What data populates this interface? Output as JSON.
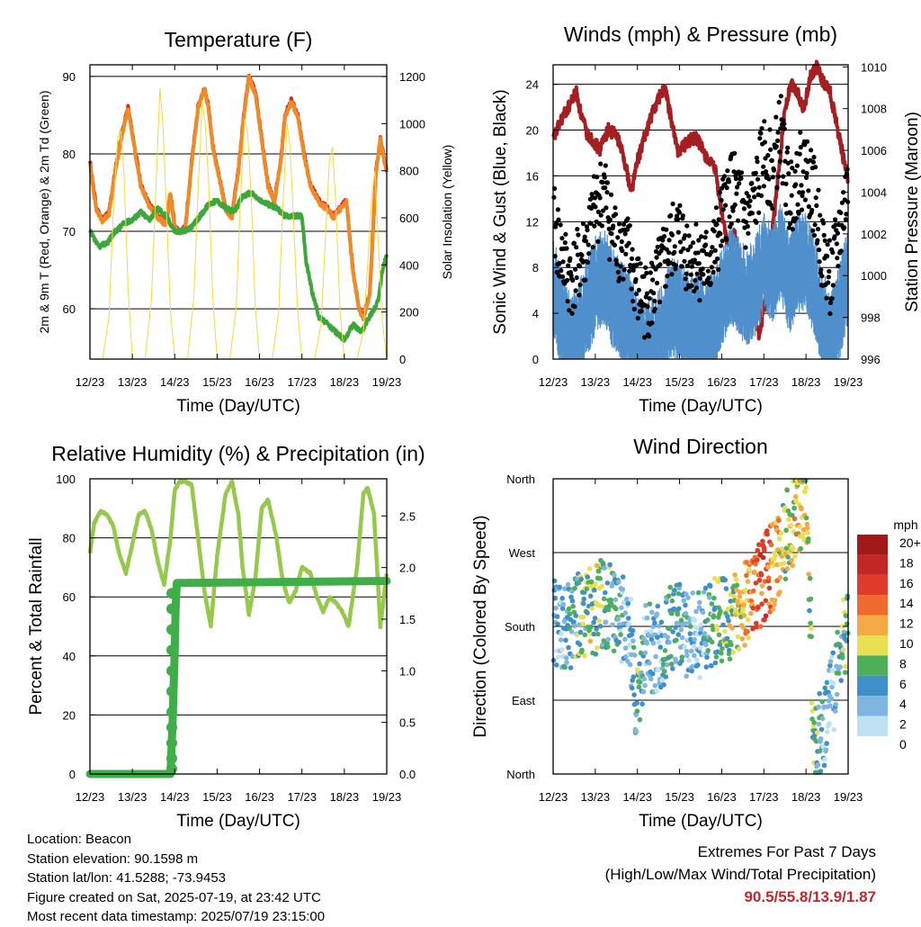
{
  "time_axis": {
    "ticks": [
      "12/23",
      "13/23",
      "14/23",
      "15/23",
      "16/23",
      "17/23",
      "18/23",
      "19/23"
    ]
  },
  "chart_data": [
    {
      "id": "temperature",
      "type": "line",
      "title": "Temperature (F)",
      "xlabel": "Time (Day/UTC)",
      "ylabel": "2m & 9m T (Red, Orange) & 2m Td (Green)",
      "y2label": "Solar Insolation (Yellow)",
      "x_range": [
        "12/23",
        "19/23"
      ],
      "ylim": [
        53.5,
        91.5
      ],
      "y_ticks": [
        60,
        70,
        80,
        90
      ],
      "y2lim": [
        0,
        1250
      ],
      "y2_ticks": [
        0,
        200,
        400,
        600,
        800,
        1000,
        1200
      ],
      "grid": true,
      "series": [
        {
          "axis": "left",
          "color": "#d42a22",
          "x": [
            12.0,
            12.15,
            12.3,
            12.45,
            12.6,
            12.75,
            12.9,
            13.05,
            13.2,
            13.4,
            13.6,
            13.8,
            13.9,
            14.0,
            14.1,
            14.25,
            14.4,
            14.55,
            14.7,
            14.8,
            14.9,
            15.05,
            15.2,
            15.35,
            15.5,
            15.65,
            15.75,
            15.9,
            16.05,
            16.2,
            16.35,
            16.5,
            16.6,
            16.75,
            16.9,
            17.05,
            17.2,
            17.4,
            17.6,
            17.75,
            17.9,
            18.05,
            18.2,
            18.35,
            18.45,
            18.6,
            18.75,
            18.85,
            18.95,
            19.0
          ],
          "y": [
            79,
            73,
            71.5,
            72.5,
            78,
            82.5,
            86,
            81,
            76,
            73.5,
            72,
            71,
            75,
            70.5,
            70,
            70.5,
            79,
            86,
            88.5,
            86,
            81,
            77,
            73,
            72,
            78,
            86,
            90,
            88,
            82,
            76,
            74,
            79,
            85,
            87,
            85,
            80,
            76,
            74,
            73,
            72,
            73,
            74,
            65,
            60,
            59,
            62,
            78,
            82,
            79,
            78
          ]
        },
        {
          "axis": "left",
          "color": "#f08a24",
          "x": [
            12.0,
            12.15,
            12.3,
            12.45,
            12.6,
            12.75,
            12.9,
            13.05,
            13.2,
            13.4,
            13.6,
            13.8,
            13.9,
            14.0,
            14.1,
            14.25,
            14.4,
            14.55,
            14.7,
            14.8,
            14.9,
            15.05,
            15.2,
            15.35,
            15.5,
            15.65,
            15.75,
            15.9,
            16.05,
            16.2,
            16.35,
            16.5,
            16.6,
            16.75,
            16.9,
            17.05,
            17.2,
            17.4,
            17.6,
            17.75,
            17.9,
            18.05,
            18.2,
            18.35,
            18.45,
            18.6,
            18.75,
            18.85,
            18.95,
            19.0
          ],
          "y": [
            78.8,
            72.8,
            71.3,
            72.3,
            77.8,
            82.3,
            85.8,
            80.8,
            75.8,
            73.3,
            71.8,
            70.8,
            74.8,
            70.3,
            69.8,
            70.3,
            78.8,
            85.8,
            88.3,
            85.8,
            80.8,
            76.8,
            72.8,
            71.8,
            77.8,
            85.8,
            89.8,
            87.8,
            81.8,
            75.8,
            73.8,
            78.8,
            84.8,
            86.8,
            84.8,
            79.8,
            75.8,
            73.8,
            72.8,
            71.8,
            72.8,
            73.8,
            64.8,
            59.8,
            58.8,
            61.8,
            77.8,
            81.8,
            78.8,
            77.8
          ]
        },
        {
          "axis": "left",
          "color": "#3ca83c",
          "x": [
            12.0,
            12.2,
            12.4,
            12.6,
            12.8,
            13.0,
            13.2,
            13.4,
            13.6,
            13.8,
            14.0,
            14.2,
            14.4,
            14.6,
            14.8,
            15.0,
            15.2,
            15.4,
            15.6,
            15.8,
            16.0,
            16.2,
            16.4,
            16.6,
            16.8,
            17.0,
            17.1,
            17.25,
            17.4,
            17.6,
            17.8,
            18.0,
            18.2,
            18.4,
            18.6,
            18.8,
            18.9,
            19.0
          ],
          "y": [
            70,
            68,
            68.5,
            70,
            71,
            71.5,
            72.5,
            71.5,
            73,
            72,
            70,
            70,
            70.5,
            72,
            73.5,
            74,
            73,
            72.5,
            74.5,
            75,
            74,
            73.5,
            73,
            72,
            72,
            72,
            66,
            62,
            59,
            58,
            57,
            56,
            58,
            57,
            59,
            61,
            65,
            67
          ]
        },
        {
          "axis": "right",
          "color": "#f5da3c",
          "x": [
            12.0,
            12.3,
            12.45,
            12.55,
            12.65,
            12.72,
            12.8,
            12.9,
            13.0,
            13.3,
            13.45,
            13.55,
            13.65,
            13.72,
            13.8,
            13.9,
            14.0,
            14.3,
            14.45,
            14.55,
            14.65,
            14.72,
            14.8,
            14.9,
            15.0,
            15.3,
            15.45,
            15.55,
            15.65,
            15.72,
            15.8,
            15.9,
            16.0,
            16.3,
            16.45,
            16.55,
            16.65,
            16.72,
            16.8,
            16.9,
            17.0,
            17.3,
            17.45,
            17.55,
            17.65,
            17.72,
            17.8,
            17.9,
            18.0,
            18.3,
            18.45,
            18.55,
            18.65,
            18.72,
            18.8,
            18.9,
            19.0
          ],
          "y": [
            0,
            0,
            180,
            620,
            930,
            980,
            800,
            300,
            0,
            0,
            250,
            700,
            1150,
            1000,
            650,
            200,
            0,
            0,
            260,
            720,
            1100,
            1000,
            750,
            250,
            0,
            0,
            220,
            680,
            1020,
            960,
            700,
            220,
            0,
            0,
            200,
            650,
            1000,
            900,
            600,
            200,
            0,
            0,
            150,
            500,
            850,
            900,
            650,
            200,
            0,
            0,
            120,
            400,
            700,
            800,
            500,
            150,
            0
          ]
        }
      ]
    },
    {
      "id": "winds",
      "type": "scatter",
      "title": "Winds (mph) & Pressure (mb)",
      "xlabel": "Time (Day/UTC)",
      "ylabel": "Sonic Wind & Gust (Blue, Black)",
      "y2label": "Station Pressure (Maroon)",
      "x_range": [
        "12/23",
        "19/23"
      ],
      "ylim": [
        0,
        25.7
      ],
      "y_ticks": [
        0,
        4,
        8,
        12,
        16,
        20,
        24
      ],
      "y2lim": [
        996,
        1010.1
      ],
      "y2_ticks": [
        996,
        998,
        1000,
        1002,
        1004,
        1006,
        1008,
        1010
      ],
      "grid": true,
      "series": [
        {
          "axis": "right",
          "kind": "line",
          "color": "#a51f22",
          "x": [
            12.0,
            12.2,
            12.4,
            12.55,
            12.65,
            12.8,
            12.95,
            13.1,
            13.3,
            13.45,
            13.55,
            13.7,
            13.85,
            14.0,
            14.15,
            14.3,
            14.5,
            14.65,
            14.8,
            14.95,
            15.1,
            15.25,
            15.4,
            15.55,
            15.7,
            15.85,
            16.0,
            16.15,
            16.3,
            16.45,
            16.6,
            16.75,
            16.9,
            17.05,
            17.2,
            17.35,
            17.5,
            17.65,
            17.8,
            17.95,
            18.1,
            18.25,
            18.4,
            18.55,
            18.7,
            18.85,
            19.0
          ],
          "y": [
            1006.5,
            1007.5,
            1008.2,
            1008.8,
            1007.8,
            1006.8,
            1006.5,
            1006,
            1007,
            1006.8,
            1006.5,
            1005.5,
            1004,
            1005.5,
            1006.5,
            1007.5,
            1008.5,
            1009,
            1007.5,
            1006,
            1006.2,
            1006.5,
            1006.6,
            1006,
            1005.5,
            1005,
            1003,
            1001.5,
            1002,
            1000.5,
            999.5,
            998.5,
            997,
            999,
            1002,
            1005,
            1008,
            1009.2,
            1008.8,
            1008,
            1009.5,
            1010,
            1009.3,
            1009,
            1007.5,
            1006,
            1004.5
          ]
        },
        {
          "axis": "left",
          "kind": "band",
          "color": "#4f8fcc",
          "x": [
            12.0,
            12.2,
            12.4,
            12.6,
            12.8,
            13.0,
            13.2,
            13.4,
            13.6,
            13.8,
            14.0,
            14.2,
            14.4,
            14.6,
            14.8,
            15.0,
            15.2,
            15.4,
            15.6,
            15.8,
            16.0,
            16.2,
            16.4,
            16.6,
            16.8,
            17.0,
            17.2,
            17.4,
            17.6,
            17.8,
            18.0,
            18.2,
            18.4,
            18.6,
            18.8,
            19.0
          ],
          "y": [
            8,
            5,
            3,
            4,
            6,
            8,
            9,
            7,
            6,
            5,
            3,
            2,
            3,
            4,
            6,
            6,
            5,
            5,
            4,
            5,
            7,
            9,
            8,
            7,
            8,
            10,
            9,
            11,
            8,
            10,
            10,
            8,
            5,
            3,
            6,
            9
          ]
        },
        {
          "axis": "left",
          "kind": "dots",
          "color": "#000000",
          "x": [
            12.0,
            12.2,
            12.4,
            12.6,
            12.8,
            13.0,
            13.2,
            13.4,
            13.6,
            13.8,
            14.0,
            14.2,
            14.4,
            14.6,
            14.8,
            15.0,
            15.2,
            15.4,
            15.6,
            15.8,
            16.0,
            16.2,
            16.4,
            16.6,
            16.8,
            17.0,
            17.2,
            17.4,
            17.6,
            17.8,
            18.0,
            18.2,
            18.4,
            18.6,
            18.8,
            19.0
          ],
          "y": [
            12,
            9,
            7,
            8,
            10,
            13,
            15,
            11,
            10,
            9,
            6,
            5,
            6,
            8,
            10,
            11,
            9,
            9,
            8,
            9,
            12,
            15,
            14,
            12,
            14,
            18,
            16,
            20,
            14,
            16,
            17,
            14,
            9,
            7,
            11,
            15
          ]
        }
      ]
    },
    {
      "id": "humidity",
      "type": "line",
      "title": "Relative Humidity (%) & Precipitation (in)",
      "xlabel": "Time (Day/UTC)",
      "ylabel": "Percent & Total Rainfall",
      "x_range": [
        "12/23",
        "19/23"
      ],
      "ylim": [
        0,
        100
      ],
      "y_ticks": [
        0,
        20,
        40,
        60,
        80,
        100
      ],
      "y2lim": [
        0,
        2.86
      ],
      "y2_ticks": [
        0.0,
        0.5,
        1.0,
        1.5,
        2.0,
        2.5
      ],
      "grid": true,
      "series": [
        {
          "axis": "left",
          "color": "#94c94a",
          "x": [
            12.0,
            12.1,
            12.25,
            12.4,
            12.55,
            12.7,
            12.85,
            13.0,
            13.15,
            13.3,
            13.45,
            13.6,
            13.75,
            13.9,
            14.0,
            14.1,
            14.25,
            14.4,
            14.55,
            14.7,
            14.85,
            15.0,
            15.2,
            15.35,
            15.5,
            15.6,
            15.75,
            15.9,
            16.05,
            16.2,
            16.4,
            16.55,
            16.7,
            16.85,
            17.0,
            17.2,
            17.35,
            17.5,
            17.65,
            17.8,
            17.95,
            18.1,
            18.3,
            18.45,
            18.55,
            18.7,
            18.85,
            19.0
          ],
          "y": [
            75,
            85,
            89,
            88,
            84,
            74,
            68,
            78,
            88,
            89,
            83,
            72,
            64,
            80,
            96,
            99,
            99,
            98,
            80,
            62,
            50,
            74,
            95,
            99,
            88,
            70,
            54,
            66,
            90,
            93,
            80,
            65,
            58,
            62,
            70,
            68,
            60,
            55,
            60,
            58,
            55,
            50,
            70,
            95,
            97,
            88,
            50,
            68
          ]
        },
        {
          "axis": "right",
          "color": "#3fae49",
          "kind": "steps",
          "x": [
            12.0,
            13.9,
            13.92,
            13.95,
            13.97,
            14.0,
            14.02,
            14.05,
            19.0
          ],
          "y": [
            0,
            0,
            0.2,
            0.5,
            0.8,
            1.2,
            1.6,
            1.85,
            1.87
          ]
        }
      ]
    },
    {
      "id": "wind_direction",
      "type": "scatter",
      "title": "Wind Direction",
      "xlabel": "Time (Day/UTC)",
      "ylabel": "Direction (Colored By Speed)",
      "x_range": [
        "12/23",
        "19/23"
      ],
      "y_ticks": [
        "North",
        "East",
        "South",
        "West",
        "North"
      ],
      "ylim": [
        0,
        360
      ],
      "grid": true,
      "legend": {
        "title": "mph",
        "labels": [
          "20+",
          "18",
          "16",
          "14",
          "12",
          "10",
          "8",
          "6",
          "4",
          "2",
          "0"
        ],
        "colors": [
          "#a01a1a",
          "#c42525",
          "#e03a2a",
          "#ee6a2e",
          "#f5a945",
          "#e8e052",
          "#4fae5a",
          "#3e8fca",
          "#7fb6e0",
          "#bfe1f5"
        ]
      },
      "series": [
        {
          "name": "",
          "x": [
            12.0,
            12.2,
            12.4,
            12.6,
            12.8,
            13.0,
            13.2,
            13.4,
            13.6,
            13.8,
            14.0,
            14.2,
            14.4,
            14.6,
            14.8,
            15.0,
            15.2,
            15.4,
            15.6,
            15.8,
            16.0,
            16.2,
            16.4,
            16.6,
            16.8,
            17.0,
            17.2,
            17.4,
            17.6,
            17.8,
            18.0,
            18.2,
            18.4,
            18.6,
            18.8,
            19.0
          ],
          "y": [
            180,
            185,
            175,
            190,
            195,
            200,
            210,
            200,
            190,
            185,
            80,
            170,
            150,
            160,
            175,
            180,
            170,
            165,
            175,
            185,
            190,
            195,
            205,
            210,
            225,
            240,
            250,
            270,
            300,
            320,
            340,
            30,
            60,
            90,
            140,
            180
          ],
          "speed": [
            4,
            3,
            5,
            6,
            7,
            8,
            6,
            5,
            4,
            3,
            6,
            4,
            3,
            4,
            5,
            5,
            4,
            3,
            4,
            6,
            7,
            8,
            9,
            11,
            13,
            14,
            12,
            9,
            8,
            10,
            9,
            7,
            4,
            2,
            5,
            7
          ]
        }
      ]
    }
  ],
  "info": {
    "location": "Location: Beacon",
    "elevation": "Station elevation: 90.1598 m",
    "latlon": "Station lat/lon: 41.5288; -73.9453",
    "created": "Figure created on Sat, 2025-07-19, at 23:42 UTC",
    "recent": "Most recent data timestamp: 2025/07/19 23:15:00"
  },
  "extremes": {
    "title": "Extremes For Past 7 Days",
    "subtitle": "(High/Low/Max Wind/Total Precipitation)",
    "values": "90.5/55.8/13.9/1.87"
  }
}
